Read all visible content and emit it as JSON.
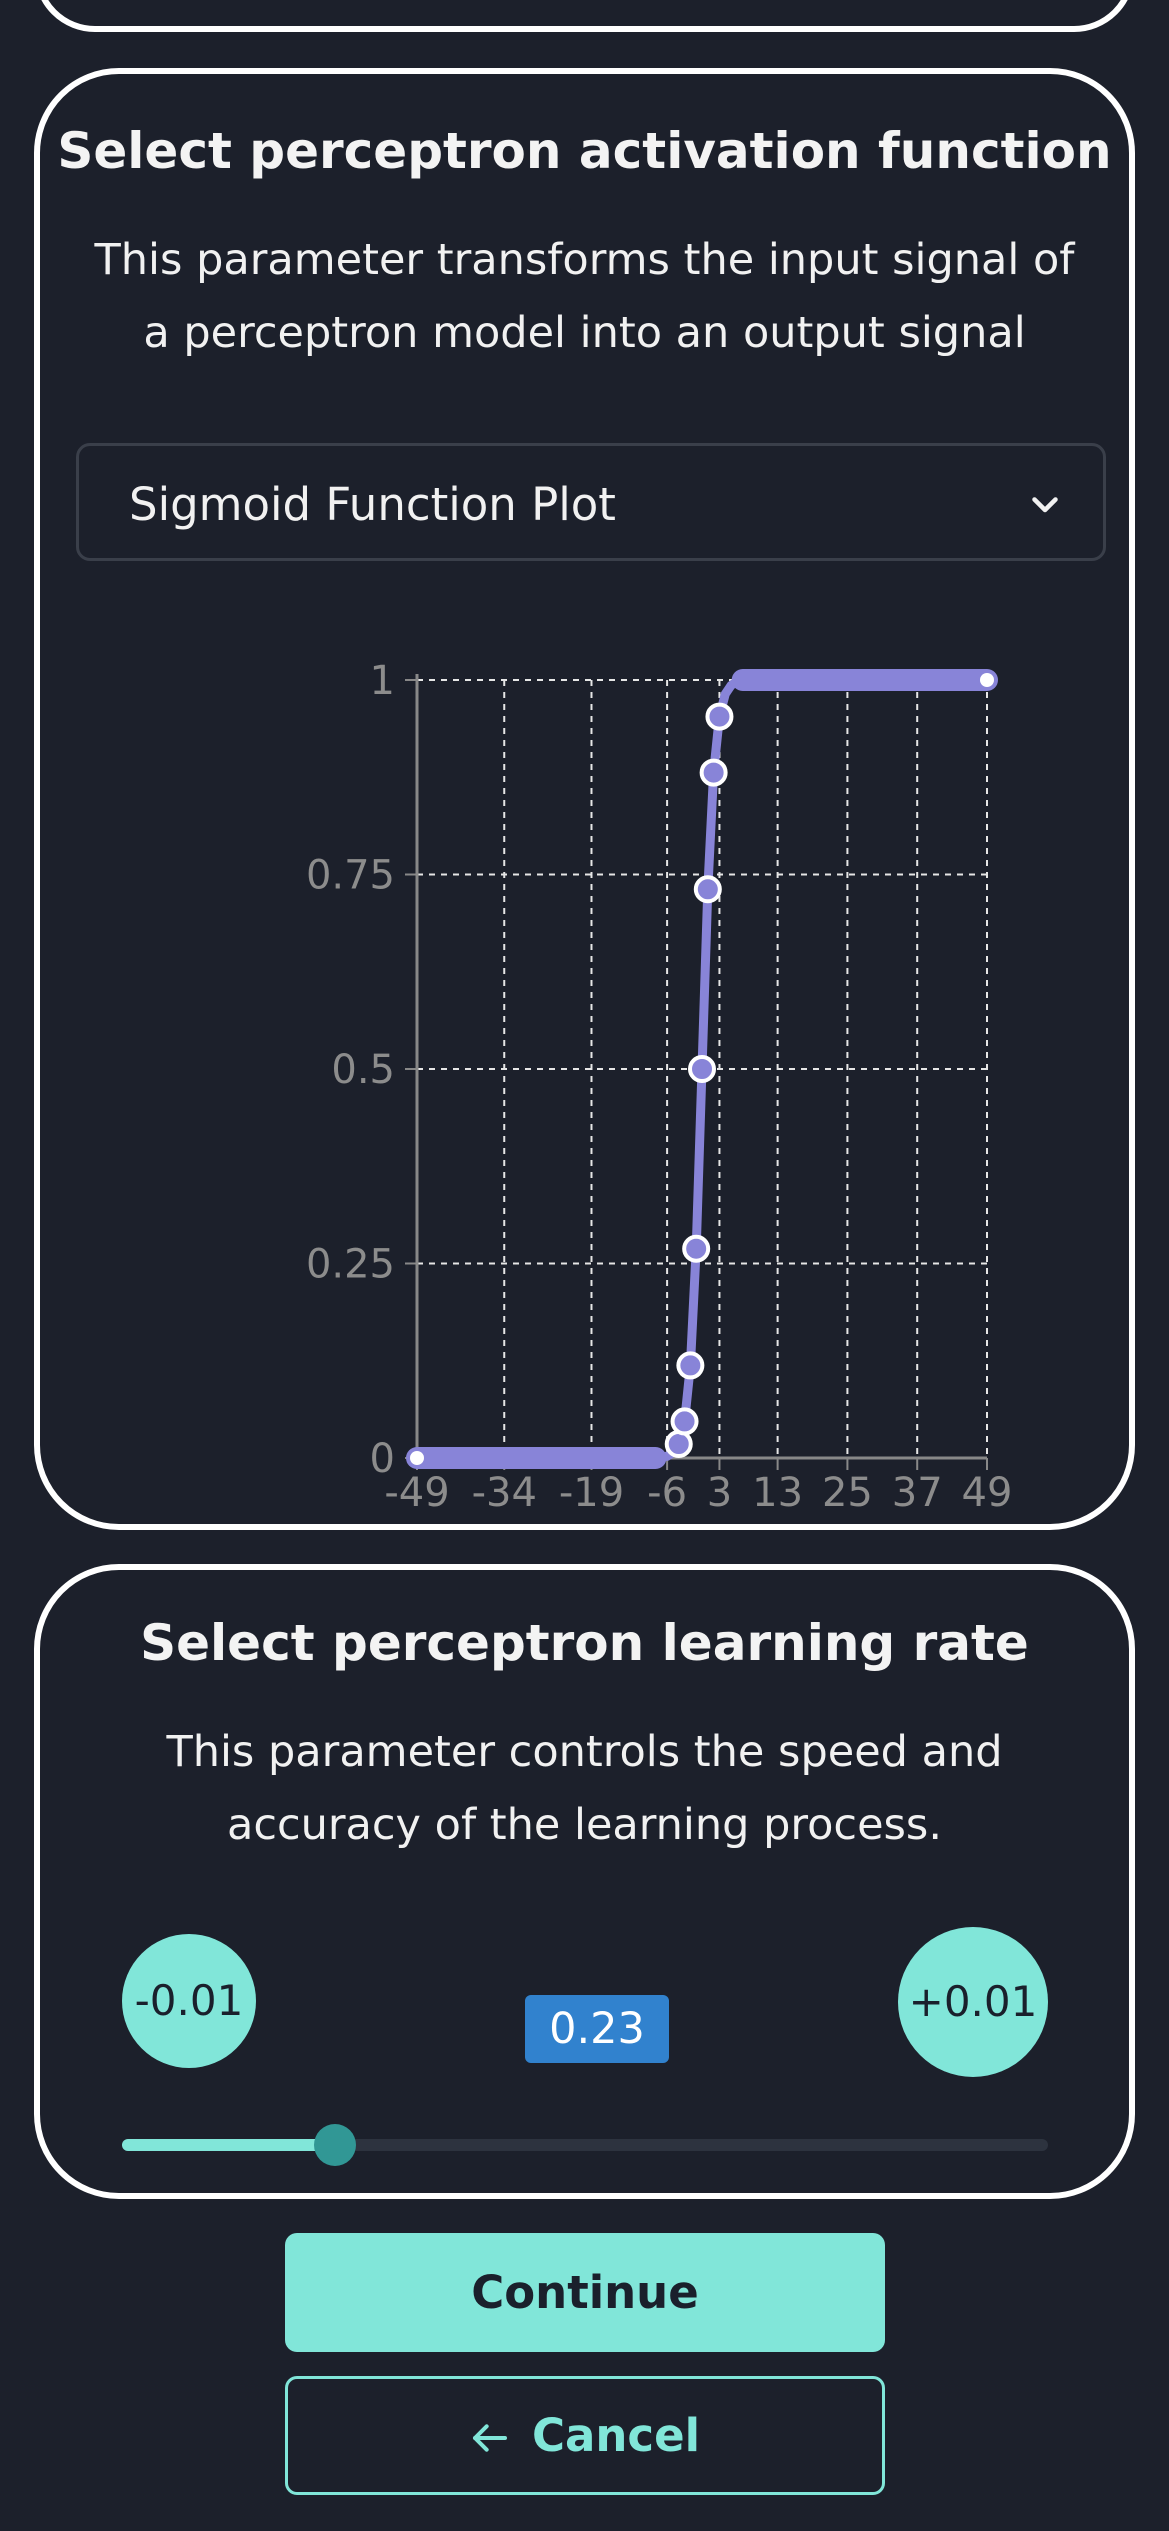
{
  "activation": {
    "title": "Select perceptron activation function",
    "description": "This parameter transforms the input signal of a perceptron model into an output signal",
    "select": {
      "value": "Sigmoid Function Plot",
      "chevron_icon": "chevron-down-icon"
    }
  },
  "chart_data": {
    "type": "line",
    "title": "",
    "xlabel": "",
    "ylabel": "",
    "x_tick_labels": [
      "-49",
      "-34",
      "-19",
      "-6",
      "3",
      "13",
      "25",
      "37",
      "49"
    ],
    "y_tick_labels": [
      "0",
      "0.25",
      "0.5",
      "0.75",
      "1"
    ],
    "ylim": [
      0,
      1
    ],
    "grid": true,
    "color": "#8884d8",
    "series": [
      {
        "x": [
          -49,
          -30,
          -10,
          -6,
          -5,
          -4,
          -3,
          -2,
          -1,
          0,
          1,
          2,
          3,
          4,
          5,
          6,
          10,
          30,
          49
        ],
        "values": [
          0,
          0,
          0,
          0.002,
          0.007,
          0.018,
          0.047,
          0.119,
          0.269,
          0.5,
          0.731,
          0.881,
          0.953,
          0.982,
          0.993,
          0.998,
          1,
          1,
          1
        ],
        "marked_x": [
          -4,
          -3,
          -2,
          -1,
          0,
          1,
          2,
          3
        ]
      }
    ]
  },
  "learning_rate": {
    "title": "Select perceptron learning rate",
    "description": "This parameter controls the speed and accuracy of the learning process.",
    "decrement_label": "-0.01",
    "increment_label": "+0.01",
    "value_label": "0.23",
    "slider_fraction": 0.23
  },
  "actions": {
    "continue_label": "Continue",
    "cancel_label": "Cancel",
    "cancel_icon": "arrow-left-icon"
  }
}
